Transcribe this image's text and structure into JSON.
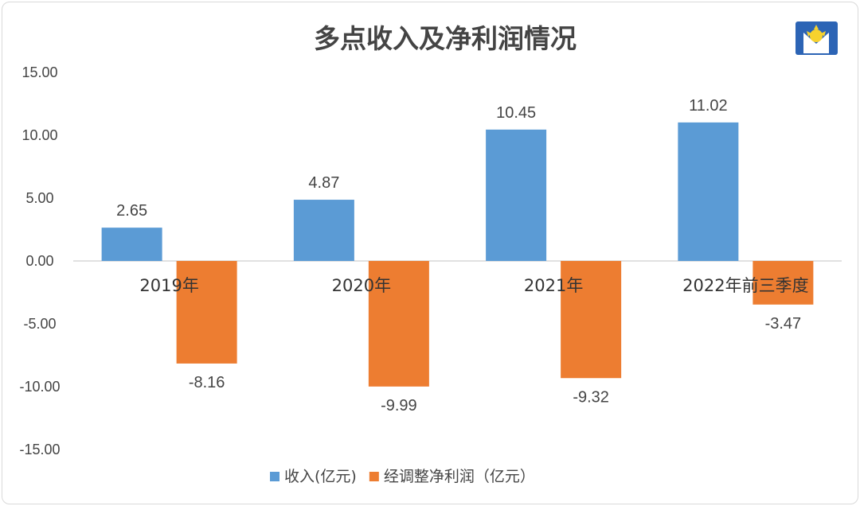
{
  "chart_data": {
    "type": "bar",
    "title": "多点收入及净利润情况",
    "categories": [
      "2019年",
      "2020年",
      "2021年",
      "2022年前三季度"
    ],
    "series": [
      {
        "name": "收入(亿元)",
        "values": [
          2.65,
          4.87,
          10.45,
          11.02
        ],
        "labels": [
          "2.65",
          "4.87",
          "10.45",
          "11.02"
        ],
        "color": "#5B9BD5"
      },
      {
        "name": "经调整净利润（亿元）",
        "values": [
          -8.16,
          -9.99,
          -9.32,
          -3.47
        ],
        "labels": [
          "-8.16",
          "-9.99",
          "-9.32",
          "-3.47"
        ],
        "color": "#ED7D31"
      }
    ],
    "ylim": [
      -15,
      15
    ],
    "yticks": [
      "15.00",
      "10.00",
      "5.00",
      "0.00",
      "-5.00",
      "-10.00",
      "-15.00"
    ],
    "grid": false,
    "legend_position": "bottom"
  },
  "logo": {
    "icon": "sun-logo-icon",
    "colors": [
      "#2C64B5",
      "#F7D22E"
    ]
  }
}
